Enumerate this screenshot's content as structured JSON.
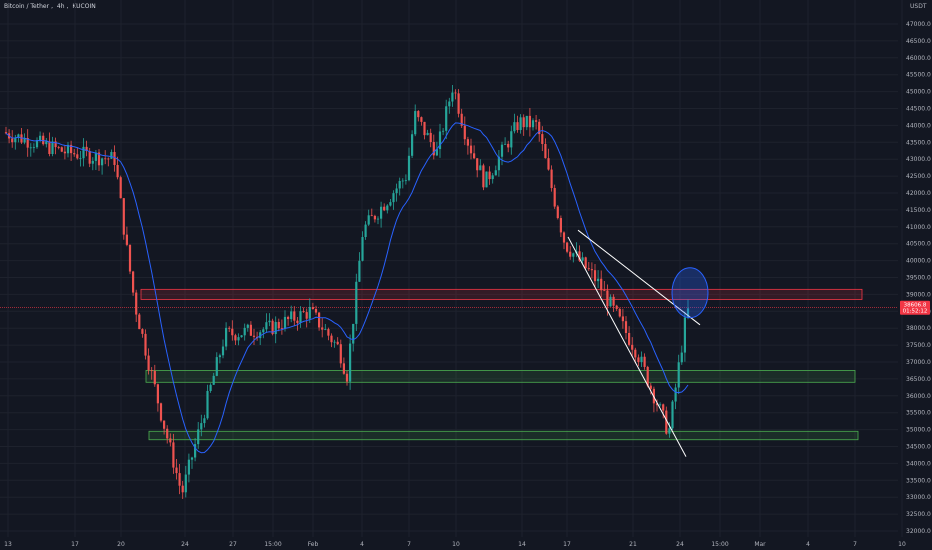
{
  "header": {
    "symbol": "Bitcoin / Tether",
    "interval": "4h",
    "exchange": "KUCOIN",
    "separator": ","
  },
  "axis": {
    "currency": "USDT",
    "tick_labels": [
      "47000.0",
      "46500.0",
      "46000.0",
      "45500.0",
      "45000.0",
      "44500.0",
      "44000.0",
      "43500.0",
      "43000.0",
      "42500.0",
      "42000.0",
      "41500.0",
      "41000.0",
      "40500.0",
      "40000.0",
      "39500.0",
      "39000.0",
      "38500.0",
      "38000.0",
      "37500.0",
      "37000.0",
      "36500.0",
      "36000.0",
      "35500.0",
      "35000.0",
      "34500.0",
      "34000.0",
      "33500.0",
      "33000.0",
      "32500.0",
      "32000.0"
    ],
    "price_tag_1": "38606.8",
    "price_tag_2": "01:52:12",
    "x_labels": [
      "13",
      "17",
      "20",
      "24",
      "27",
      "15:00",
      "Feb",
      "4",
      "7",
      "10",
      "14",
      "17",
      "21",
      "24",
      "15:00",
      "Mar",
      "4",
      "7",
      "10"
    ]
  },
  "colors": {
    "background": "#131722",
    "up": "#26a69a",
    "down": "#ef5350",
    "ma": "#2962ff",
    "resistance_zone": "#f23645",
    "support_zone": "#4caf50",
    "price_line": "#f23645",
    "wedge_lines": "#ffffff",
    "circle": "#2962ff"
  },
  "chart_data": {
    "type": "candlestick",
    "title": "Bitcoin / Tether, 4h, KUCOIN",
    "ylabel": "USDT",
    "ylim": [
      31800,
      47500
    ],
    "current_price": 38606.8,
    "moving_average_color": "#2962ff",
    "zones": [
      {
        "type": "resistance",
        "low": 38850,
        "high": 39150,
        "start_label": "20",
        "end": "right"
      },
      {
        "type": "support",
        "low": 36400,
        "high": 36750,
        "start_label": "20",
        "end": "right"
      },
      {
        "type": "support",
        "low": 34700,
        "high": 34950,
        "start_label": "20",
        "end": "right"
      }
    ],
    "trendlines": [
      {
        "from": {
          "x": "17",
          "y": 40900
        },
        "to": {
          "x": "24",
          "y": 38100
        }
      },
      {
        "from": {
          "x": "17",
          "y": 40700
        },
        "to": {
          "x": "24",
          "y": 34200
        }
      }
    ],
    "anchors": [
      {
        "x": "13",
        "y": 43800
      },
      {
        "x": "17",
        "y": 43200
      },
      {
        "x": "20",
        "y": 43000
      },
      {
        "x": "20",
        "y": 40500
      },
      {
        "x": "20",
        "y": 38700
      },
      {
        "x": "24",
        "y": 35600
      },
      {
        "x": "24",
        "y": 33100
      },
      {
        "x": "27",
        "y": 37800
      },
      {
        "x": "15:00",
        "y": 38000
      },
      {
        "x": "Feb",
        "y": 38500
      },
      {
        "x": "Feb",
        "y": 37400
      },
      {
        "x": "4",
        "y": 36600
      },
      {
        "x": "4",
        "y": 40900
      },
      {
        "x": "7",
        "y": 42500
      },
      {
        "x": "7",
        "y": 44300
      },
      {
        "x": "10",
        "y": 43200
      },
      {
        "x": "10",
        "y": 45200
      },
      {
        "x": "10",
        "y": 43600
      },
      {
        "x": "14",
        "y": 42300
      },
      {
        "x": "14",
        "y": 44100
      },
      {
        "x": "17",
        "y": 44000
      },
      {
        "x": "17",
        "y": 40500
      },
      {
        "x": "21",
        "y": 39400
      },
      {
        "x": "21",
        "y": 37300
      },
      {
        "x": "24",
        "y": 34900
      },
      {
        "x": "24",
        "y": 38500
      }
    ]
  }
}
